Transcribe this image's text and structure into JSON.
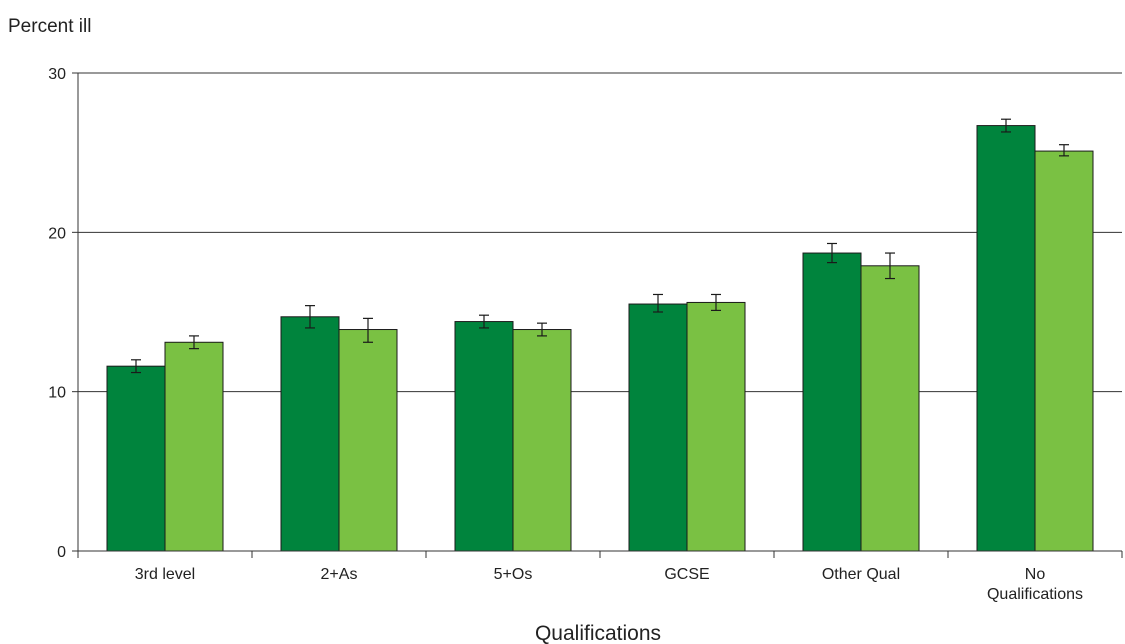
{
  "chart_data": {
    "type": "bar",
    "title": "",
    "xlabel": "Qualifications",
    "ylabel": "Percent ill",
    "ylim": [
      0,
      30
    ],
    "yticks": [
      0,
      10,
      20,
      30
    ],
    "grid": true,
    "categories": [
      "3rd level",
      "2+As",
      "5+Os",
      "GCSE",
      "Other Qual",
      "No Qualifications"
    ],
    "series": [
      {
        "color": "#00843d",
        "values": [
          11.6,
          14.7,
          14.4,
          15.5,
          18.7,
          26.7
        ],
        "error_low": [
          11.2,
          14.0,
          14.0,
          15.0,
          18.1,
          26.3
        ],
        "error_high": [
          12.0,
          15.4,
          14.8,
          16.1,
          19.3,
          27.1
        ]
      },
      {
        "color": "#7ac143",
        "values": [
          13.1,
          13.9,
          13.9,
          15.6,
          17.9,
          25.1
        ],
        "error_low": [
          12.7,
          13.1,
          13.5,
          15.1,
          17.1,
          24.8
        ],
        "error_high": [
          13.5,
          14.6,
          14.3,
          16.1,
          18.7,
          25.5
        ]
      }
    ]
  }
}
